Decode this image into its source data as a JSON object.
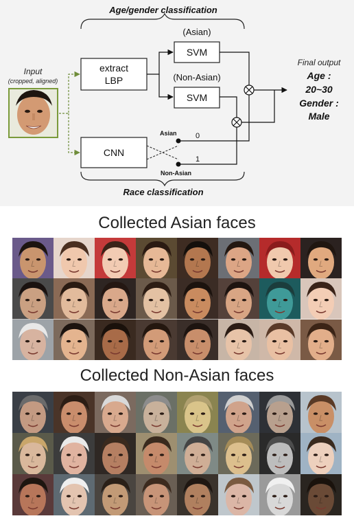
{
  "diagram": {
    "top_title": "Age/gender classification",
    "bottom_title": "Race classification",
    "input_label": "Input",
    "input_sublabel": "(cropped, aligned)",
    "lbp_box": [
      "extract",
      "LBP"
    ],
    "svm_label": "SVM",
    "asian_branch_label": "(Asian)",
    "non_asian_branch_label": "(Non-Asian)",
    "cnn_label": "CNN",
    "switch_top_label": "Asian",
    "switch_bottom_label": "Non-Asian",
    "output_zero": "0",
    "output_one": "1",
    "final_output_label": "Final output",
    "result_lines": [
      "Age :",
      "20~30",
      "Gender :",
      "Male"
    ]
  },
  "asian_panel": {
    "title": "Collected Asian faces",
    "faces": [
      {
        "skin": "#c9956e",
        "hair": "#1c1410",
        "bg": "#6a5a8a"
      },
      {
        "skin": "#f0c8ad",
        "hair": "#4a2f20",
        "bg": "#e6d6cc"
      },
      {
        "skin": "#f2cbb3",
        "hair": "#3b2318",
        "bg": "#c43a3a"
      },
      {
        "skin": "#e6b896",
        "hair": "#2b1a12",
        "bg": "#5b4a32"
      },
      {
        "skin": "#b3774f",
        "hair": "#15100c",
        "bg": "#3e2c22"
      },
      {
        "skin": "#dca585",
        "hair": "#241811",
        "bg": "#6c6f75"
      },
      {
        "skin": "#f0c9ad",
        "hair": "#8a1c1c",
        "bg": "#b52b2b"
      },
      {
        "skin": "#e0a97f",
        "hair": "#201610",
        "bg": "#2b2220"
      },
      {
        "skin": "#caa082",
        "hair": "#1a1210",
        "bg": "#4a4a4a"
      },
      {
        "skin": "#e2bb9c",
        "hair": "#2a1b12",
        "bg": "#8a6a55"
      },
      {
        "skin": "#d9a88a",
        "hair": "#241712",
        "bg": "#2e2522"
      },
      {
        "skin": "#e3c1a3",
        "hair": "#2d1d14",
        "bg": "#6b5a4a"
      },
      {
        "skin": "#c98b5f",
        "hair": "#1c130e",
        "bg": "#3b2c25"
      },
      {
        "skin": "#d8a584",
        "hair": "#1e1410",
        "bg": "#54413a"
      },
      {
        "skin": "#3f9a98",
        "hair": "#1b3d3c",
        "bg": "#1d5b5d"
      },
      {
        "skin": "#f3cdb5",
        "hair": "#3a2318",
        "bg": "#d9c6bb"
      },
      {
        "skin": "#d7b3a0",
        "hair": "#e8e8e8",
        "bg": "#9da3a8"
      },
      {
        "skin": "#e4b48f",
        "hair": "#1c140f",
        "bg": "#7c6a5c"
      },
      {
        "skin": "#a86b48",
        "hair": "#1a110b",
        "bg": "#3a2a20"
      },
      {
        "skin": "#d29b78",
        "hair": "#24170f",
        "bg": "#4a3a32"
      },
      {
        "skin": "#c88e6b",
        "hair": "#1d1410",
        "bg": "#3a2e29"
      },
      {
        "skin": "#e7c3a8",
        "hair": "#2b1c14",
        "bg": "#c7b5a6"
      },
      {
        "skin": "#e9c0a3",
        "hair": "#5a3a28",
        "bg": "#cfb8a8"
      },
      {
        "skin": "#e2ae8a",
        "hair": "#3b2416",
        "bg": "#7a5a45"
      }
    ]
  },
  "non_asian_panel": {
    "title": "Collected Non-Asian faces",
    "faces": [
      {
        "skin": "#c39a82",
        "hair": "#6b6b6b",
        "bg": "#3a3f46"
      },
      {
        "skin": "#c98d6c",
        "hair": "#2c1d14",
        "bg": "#4a3428"
      },
      {
        "skin": "#d8a98e",
        "hair": "#d9d9d9",
        "bg": "#7b6a5f"
      },
      {
        "skin": "#c8b19b",
        "hair": "#8c8c8c",
        "bg": "#6b7066"
      },
      {
        "skin": "#d9c48a",
        "hair": "#b0a070",
        "bg": "#8a8450"
      },
      {
        "skin": "#d0a38b",
        "hair": "#cfcfcf",
        "bg": "#556070"
      },
      {
        "skin": "#b8a08e",
        "hair": "#9a9a9a",
        "bg": "#2e3136"
      },
      {
        "skin": "#c98f66",
        "hair": "#5a3a26",
        "bg": "#b7c3cc"
      },
      {
        "skin": "#d9b89c",
        "hair": "#c9a66a",
        "bg": "#5a5a4a"
      },
      {
        "skin": "#e0b3a0",
        "hair": "#e9e9e9",
        "bg": "#3c3c3c"
      },
      {
        "skin": "#b57f62",
        "hair": "#3b2a1e",
        "bg": "#2f2824"
      },
      {
        "skin": "#c58a6b",
        "hair": "#3a2a1e",
        "bg": "#9e8f70"
      },
      {
        "skin": "#cfae96",
        "hair": "#444444",
        "bg": "#7f8a86"
      },
      {
        "skin": "#dcbf8d",
        "hair": "#a58c58",
        "bg": "#6c6a5a"
      },
      {
        "skin": "#bdbdbd",
        "hair": "#4d4d4d",
        "bg": "#2a2a2a"
      },
      {
        "skin": "#edd0bd",
        "hair": "#3a2a1e",
        "bg": "#9fb3c4"
      },
      {
        "skin": "#b7765a",
        "hair": "#1e1610",
        "bg": "#5a3a3a"
      },
      {
        "skin": "#e3c4b0",
        "hair": "#efefef",
        "bg": "#5e6a72"
      },
      {
        "skin": "#c29a76",
        "hair": "#2a2018",
        "bg": "#4a4540"
      },
      {
        "skin": "#c79478",
        "hair": "#3c2a1e",
        "bg": "#6a5f54"
      },
      {
        "skin": "#b0805f",
        "hair": "#1f1712",
        "bg": "#3a332c"
      },
      {
        "skin": "#dbb6a6",
        "hair": "#7a5a40",
        "bg": "#bfc7cc"
      },
      {
        "skin": "#d8d8d8",
        "hair": "#f0f0f0",
        "bg": "#9a9a9a"
      },
      {
        "skin": "#6a4a36",
        "hair": "#1a120c",
        "bg": "#2a2520"
      }
    ]
  }
}
